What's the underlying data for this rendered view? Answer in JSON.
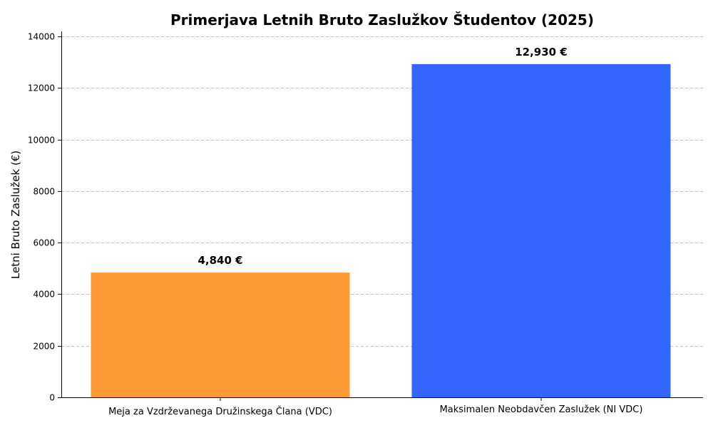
{
  "chart_data": {
    "type": "bar",
    "title": "Primerjava Letnih Bruto Zaslužkov Študentov (2025)",
    "xlabel": "",
    "ylabel": "Letni Bruto Zaslužek (€)",
    "categories": [
      "Meja za Vzdrževanega Družinskega Člana (VDC)",
      "Maksimalen Neobdavčen Zaslužek (NI VDC)"
    ],
    "values": [
      4840,
      12930
    ],
    "data_labels": [
      "4,840 €",
      "12,930 €"
    ],
    "colors": [
      "#ff9933",
      "#3366ff"
    ],
    "ylim": [
      0,
      14200
    ],
    "yticks": [
      0,
      2000,
      4000,
      6000,
      8000,
      10000,
      12000,
      14000
    ],
    "ytick_labels": [
      "0",
      "2000",
      "4000",
      "6000",
      "8000",
      "10000",
      "12000",
      "14000"
    ],
    "grid": true,
    "grid_axis": "y",
    "legend": "none"
  }
}
